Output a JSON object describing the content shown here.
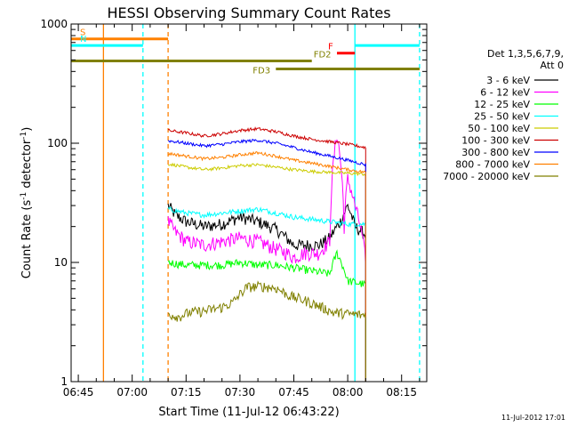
{
  "chart_data": {
    "type": "line",
    "title": "HESSI Observing Summary Count Rates",
    "xlabel": "Start Time (11-Jul-12 06:43:22)",
    "ylabel": "Count Rate (s⁻¹ detector⁻¹)",
    "ylabel_main": "Count Rate (s",
    "ylabel_sup1": "-1",
    "ylabel_mid": " detector",
    "ylabel_sup2": "-1",
    "ylabel_end": ")",
    "footer": "11-Jul-2012 17:01",
    "x_scale": "time (minutes)",
    "y_scale": "log",
    "xlim": [
      "06:43",
      "08:22"
    ],
    "ylim": [
      1,
      1000
    ],
    "x_ticks": [
      "06:45",
      "07:00",
      "07:15",
      "07:30",
      "07:45",
      "08:00",
      "08:15"
    ],
    "y_ticks": [
      "1",
      "10",
      "100",
      "1000"
    ],
    "grid": false,
    "legend_placement": "right",
    "legend_header": [
      "Det 1,3,5,6,7,9,",
      "Att 0"
    ],
    "series": [
      {
        "name": "3 - 6 keV",
        "color": "#000000",
        "x": [
          "07:10",
          "07:12",
          "07:15",
          "07:20",
          "07:25",
          "07:30",
          "07:35",
          "07:40",
          "07:43",
          "07:45",
          "07:48",
          "07:52",
          "07:55",
          "07:58",
          "08:00",
          "08:02",
          "08:05"
        ],
        "y": [
          30,
          25,
          22,
          20,
          21,
          24,
          22,
          19,
          16,
          14,
          14,
          14,
          16,
          22,
          30,
          20,
          17
        ]
      },
      {
        "name": "6 - 12 keV",
        "color": "#ff00ff",
        "x": [
          "07:10",
          "07:12",
          "07:15",
          "07:20",
          "07:25",
          "07:30",
          "07:35",
          "07:40",
          "07:43",
          "07:45",
          "07:48",
          "07:52",
          "07:55",
          "07:57",
          "07:59",
          "08:00",
          "08:02",
          "08:05"
        ],
        "y": [
          22,
          18,
          15,
          14,
          15,
          16,
          15,
          13,
          12,
          11,
          12,
          12,
          15,
          120,
          20,
          50,
          30,
          10
        ]
      },
      {
        "name": "12 - 25 keV",
        "color": "#00ff00",
        "x": [
          "07:10",
          "07:15",
          "07:20",
          "07:25",
          "07:30",
          "07:35",
          "07:40",
          "07:45",
          "07:50",
          "07:55",
          "07:57",
          "08:00",
          "08:05"
        ],
        "y": [
          10,
          9.5,
          9.5,
          9.5,
          10,
          9.5,
          9.5,
          9,
          8.5,
          8,
          12,
          7,
          6.5
        ]
      },
      {
        "name": "25 - 50 keV",
        "color": "#00ffff",
        "x": [
          "07:10",
          "07:15",
          "07:20",
          "07:25",
          "07:30",
          "07:35",
          "07:40",
          "07:45",
          "07:50",
          "07:55",
          "08:00",
          "08:05"
        ],
        "y": [
          28,
          26,
          25,
          26,
          27,
          28,
          26,
          24,
          23,
          22,
          21,
          21
        ]
      },
      {
        "name": "50 - 100 keV",
        "color": "#cccc00",
        "x": [
          "07:10",
          "07:15",
          "07:20",
          "07:25",
          "07:30",
          "07:35",
          "07:40",
          "07:45",
          "07:50",
          "07:55",
          "08:00",
          "08:05"
        ],
        "y": [
          67,
          63,
          60,
          62,
          65,
          66,
          63,
          60,
          58,
          57,
          56,
          55
        ]
      },
      {
        "name": "100 - 300 keV",
        "color": "#cc0000",
        "x": [
          "07:10",
          "07:15",
          "07:20",
          "07:25",
          "07:30",
          "07:35",
          "07:40",
          "07:45",
          "07:50",
          "07:55",
          "08:00",
          "08:05"
        ],
        "y": [
          128,
          122,
          115,
          120,
          128,
          132,
          125,
          115,
          108,
          103,
          98,
          92
        ]
      },
      {
        "name": "300 - 800 keV",
        "color": "#0000ff",
        "x": [
          "07:10",
          "07:15",
          "07:20",
          "07:25",
          "07:30",
          "07:35",
          "07:40",
          "07:45",
          "07:50",
          "07:55",
          "08:00",
          "08:05"
        ],
        "y": [
          105,
          100,
          95,
          98,
          103,
          106,
          100,
          92,
          84,
          78,
          72,
          66
        ]
      },
      {
        "name": "800 - 7000 keV",
        "color": "#ff8000",
        "x": [
          "07:10",
          "07:15",
          "07:20",
          "07:25",
          "07:30",
          "07:35",
          "07:40",
          "07:45",
          "07:50",
          "07:55",
          "08:00",
          "08:05"
        ],
        "y": [
          82,
          78,
          74,
          76,
          80,
          83,
          78,
          72,
          68,
          64,
          60,
          57
        ]
      },
      {
        "name": "7000 - 20000 keV",
        "color": "#808000",
        "x": [
          "07:10",
          "07:13",
          "07:16",
          "07:20",
          "07:25",
          "07:28",
          "07:32",
          "07:36",
          "07:40",
          "07:44",
          "07:48",
          "07:52",
          "07:56",
          "08:00",
          "08:05"
        ],
        "y": [
          3.7,
          3.5,
          3.8,
          3.9,
          4.2,
          4.6,
          6.2,
          6.3,
          6.1,
          5.2,
          4.8,
          4.3,
          3.8,
          3.7,
          3.6
        ]
      }
    ],
    "annotations": [
      {
        "label": "S",
        "color": "#ff8000",
        "x": [
          "06:43",
          "07:10"
        ],
        "y": 750
      },
      {
        "label": "N",
        "color": "#00ffff",
        "x": [
          "06:43",
          "07:03"
        ],
        "y": 660
      },
      {
        "label": "FD2",
        "color": "#808000",
        "x": [
          "06:43",
          "07:50"
        ],
        "y": 490
      },
      {
        "label": "FD3",
        "color": "#808000",
        "x": [
          "07:40",
          "08:20"
        ],
        "y": 420
      },
      {
        "label": "F",
        "color": "#ff0000",
        "x": [
          "07:57",
          "08:02"
        ],
        "y": 570
      },
      {
        "label": "",
        "color": "#00ffff",
        "x": [
          "08:02",
          "08:20"
        ],
        "y": 660
      }
    ],
    "vertical_markers": [
      {
        "x": "06:52",
        "color": "#ff8000",
        "style": "solid"
      },
      {
        "x": "07:10",
        "color": "#ff8000",
        "style": "dashed"
      },
      {
        "x": "07:03",
        "color": "#00ffff",
        "style": "dashed"
      },
      {
        "x": "08:02",
        "color": "#00ffff",
        "style": "solid"
      },
      {
        "x": "08:20",
        "color": "#00ffff",
        "style": "dashed"
      }
    ]
  }
}
